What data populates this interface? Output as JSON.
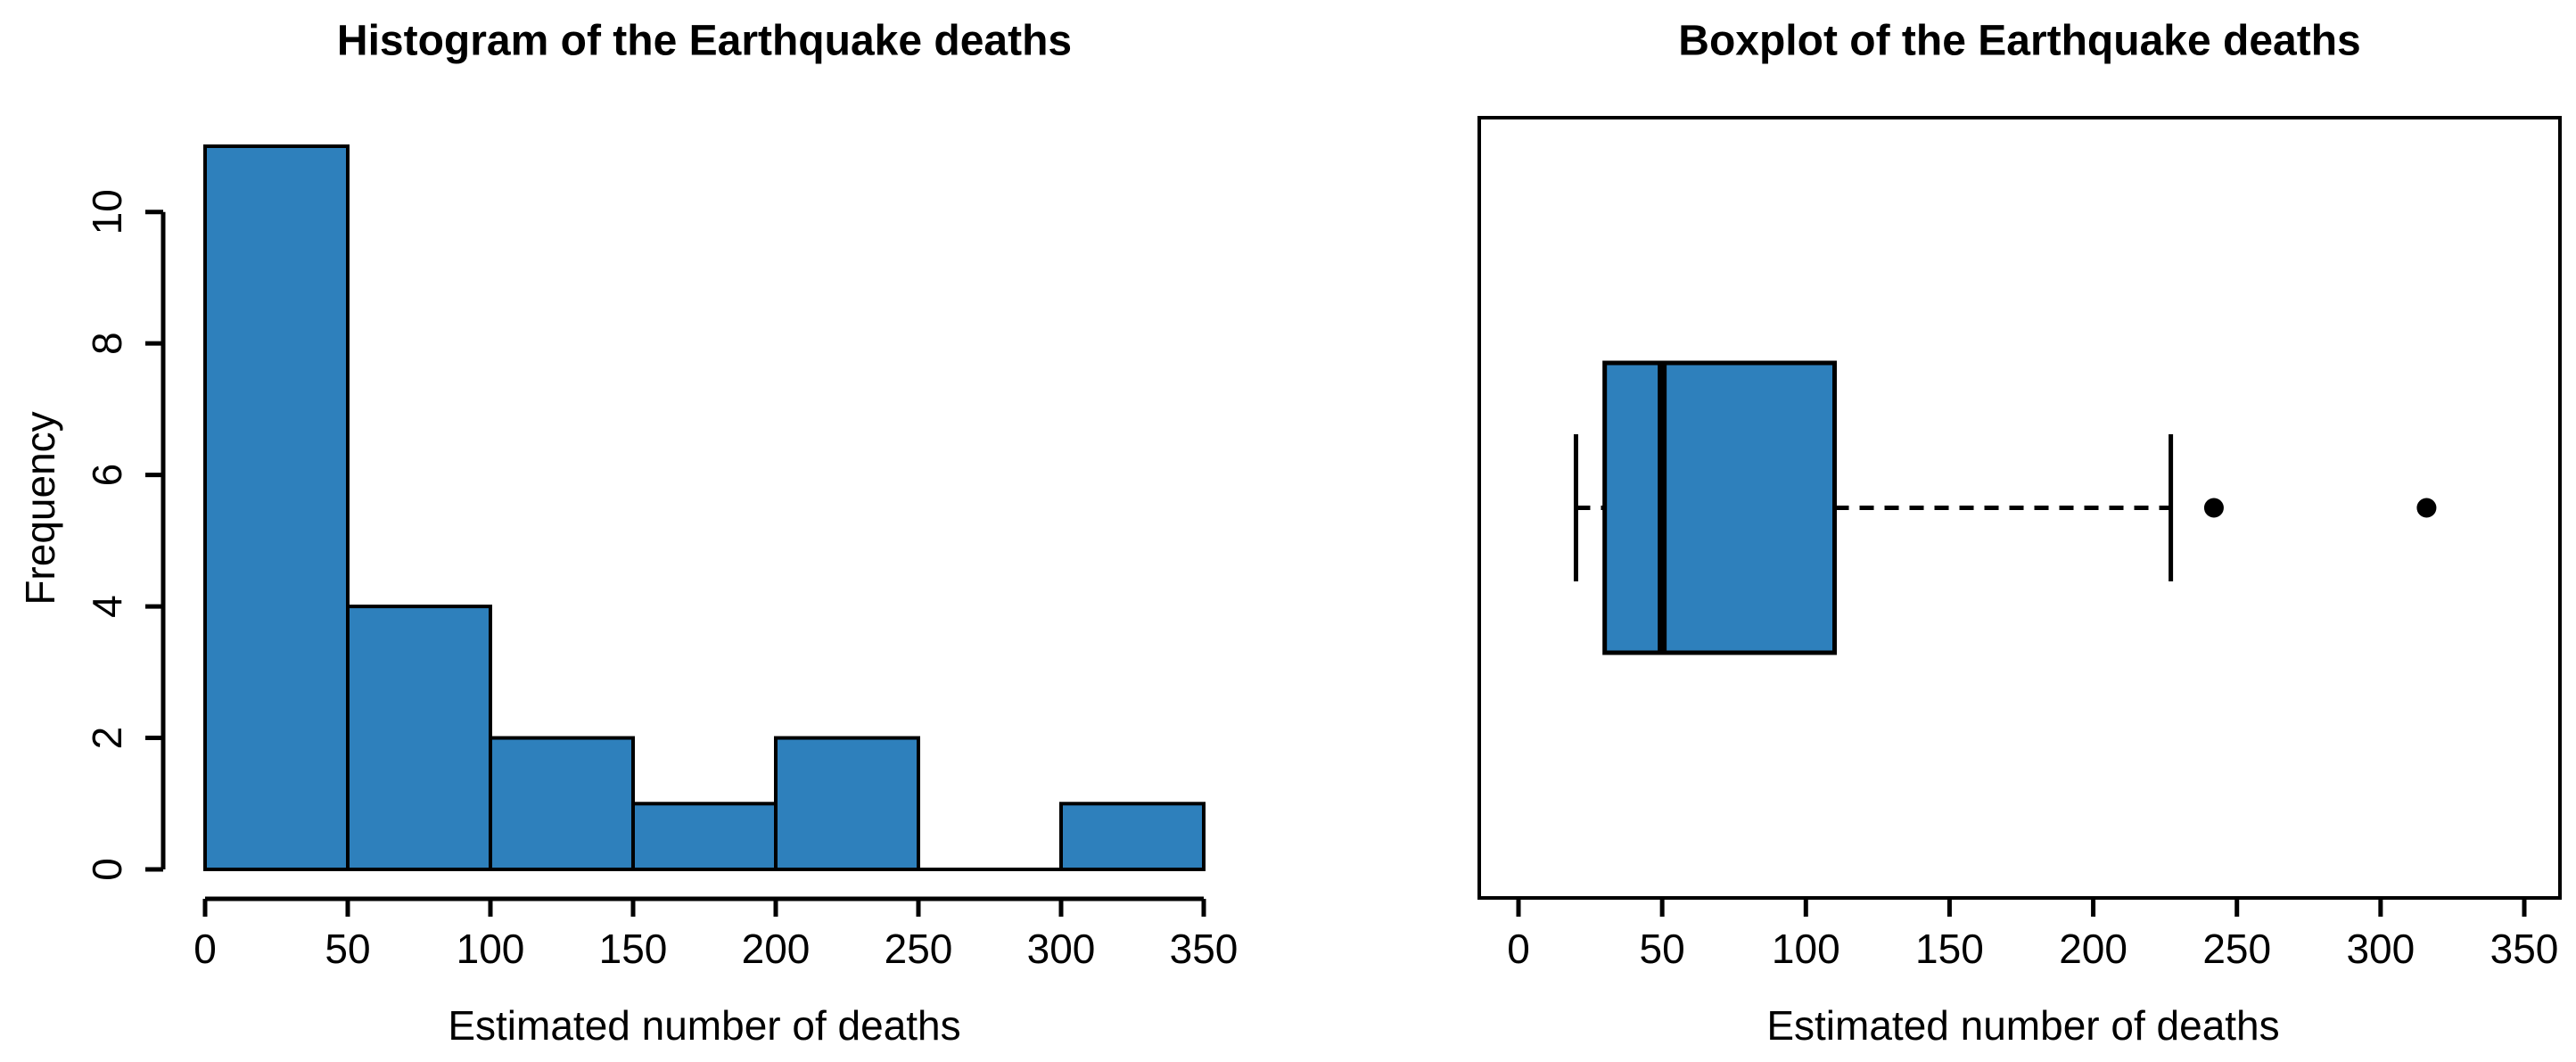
{
  "figure": {
    "background": "#ffffff",
    "text_color": "#000000",
    "accent_blue": "#2E80BC"
  },
  "chart_data": [
    {
      "type": "bar",
      "subtype": "histogram",
      "title": "Histogram of the Earthquake deaths",
      "xlabel": "Estimated number of deaths",
      "ylabel": "Frequency",
      "bin_edges": [
        0,
        50,
        100,
        150,
        200,
        250,
        300,
        350
      ],
      "counts": [
        11,
        4,
        2,
        1,
        2,
        0,
        1
      ],
      "x_ticks": [
        0,
        50,
        100,
        150,
        200,
        250,
        300,
        350
      ],
      "y_ticks": [
        0,
        2,
        4,
        6,
        8,
        10
      ],
      "xlim": [
        0,
        350
      ],
      "ylim": [
        0,
        11
      ],
      "grid": "off",
      "legend": "none",
      "bar_fill": "#2E80BC",
      "bar_border": "#000000"
    },
    {
      "type": "boxplot",
      "orientation": "horizontal",
      "title": "Boxplot of the Earthquake deaths",
      "xlabel": "Estimated number of deaths",
      "stats": {
        "lower_whisker": 20,
        "q1": 30,
        "median": 50,
        "q3": 110,
        "upper_whisker": 227
      },
      "outliers": [
        242,
        316
      ],
      "x_ticks": [
        0,
        50,
        100,
        150,
        200,
        250,
        300,
        350
      ],
      "xlim": [
        0,
        350
      ],
      "grid": "off",
      "frame": "on",
      "whisker_style": "dashed",
      "box_fill": "#2E80BC",
      "box_border": "#000000",
      "outlier_color": "#000000"
    }
  ]
}
